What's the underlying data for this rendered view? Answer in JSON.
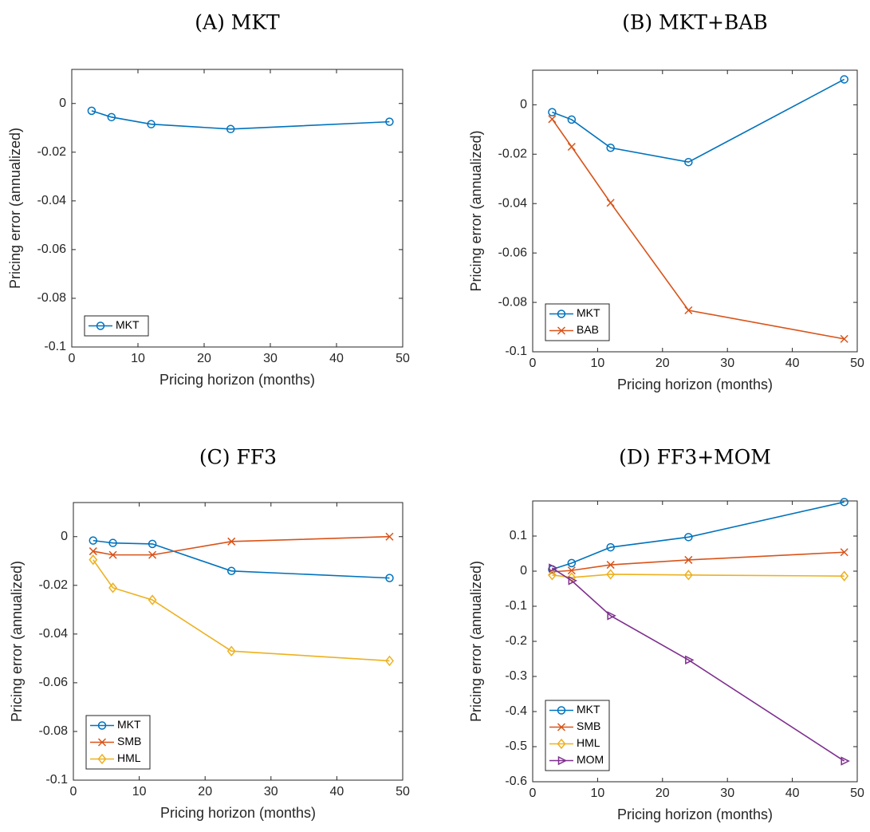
{
  "chart_data": [
    {
      "type": "line",
      "title": "(A) MKT",
      "x_label": "Pricing horizon (months)",
      "y_label": "Pricing error (annualized)",
      "x": [
        3,
        6,
        12,
        24,
        48
      ],
      "xlim": [
        0,
        50
      ],
      "xticks": [
        0,
        10,
        20,
        30,
        40,
        50
      ],
      "ylim": [
        -0.1,
        0.014
      ],
      "yticks": [
        -0.1,
        -0.08,
        -0.06,
        -0.04,
        -0.02,
        0
      ],
      "legend": "lower-left",
      "series": [
        {
          "name": "MKT",
          "color": "#0072bd",
          "marker": "circle",
          "values": [
            -0.003,
            -0.0056,
            -0.0085,
            -0.0105,
            -0.0075
          ]
        }
      ]
    },
    {
      "type": "line",
      "title": "(B) MKT+BAB",
      "x_label": "Pricing horizon (months)",
      "y_label": "Pricing error (annualized)",
      "x": [
        3,
        6,
        12,
        24,
        48
      ],
      "xlim": [
        0,
        50
      ],
      "xticks": [
        0,
        10,
        20,
        30,
        40,
        50
      ],
      "ylim": [
        -0.1,
        0.014
      ],
      "yticks": [
        -0.1,
        -0.08,
        -0.06,
        -0.04,
        -0.02,
        0
      ],
      "legend": "lower-left",
      "series": [
        {
          "name": "MKT",
          "color": "#0072bd",
          "marker": "circle",
          "values": [
            -0.003,
            -0.006,
            -0.0174,
            -0.0232,
            0.0103
          ]
        },
        {
          "name": "BAB",
          "color": "#d95319",
          "marker": "x",
          "values": [
            -0.0058,
            -0.017,
            -0.0397,
            -0.0832,
            -0.0948
          ]
        }
      ]
    },
    {
      "type": "line",
      "title": "(C) FF3",
      "x_label": "Pricing horizon (months)",
      "y_label": "Pricing error (annualized)",
      "x": [
        3,
        6,
        12,
        24,
        48
      ],
      "xlim": [
        0,
        50
      ],
      "xticks": [
        0,
        10,
        20,
        30,
        40,
        50
      ],
      "ylim": [
        -0.1,
        0.014
      ],
      "yticks": [
        -0.1,
        -0.08,
        -0.06,
        -0.04,
        -0.02,
        0
      ],
      "legend": "lower-left",
      "series": [
        {
          "name": "MKT",
          "color": "#0072bd",
          "marker": "circle",
          "values": [
            -0.0016,
            -0.0026,
            -0.003,
            -0.0141,
            -0.017
          ]
        },
        {
          "name": "SMB",
          "color": "#d95319",
          "marker": "x",
          "values": [
            -0.006,
            -0.0075,
            -0.0075,
            -0.002,
            0
          ]
        },
        {
          "name": "HML",
          "color": "#edb120",
          "marker": "diamond",
          "values": [
            -0.0095,
            -0.021,
            -0.026,
            -0.047,
            -0.051
          ]
        }
      ]
    },
    {
      "type": "line",
      "title": "(D) FF3+MOM",
      "x_label": "Pricing horizon (months)",
      "y_label": "Pricing error (annualized)",
      "x": [
        3,
        6,
        12,
        24,
        48
      ],
      "xlim": [
        0,
        50
      ],
      "xticks": [
        0,
        10,
        20,
        30,
        40,
        50
      ],
      "ylim": [
        -0.6,
        0.2
      ],
      "yticks": [
        -0.6,
        -0.5,
        -0.4,
        -0.3,
        -0.2,
        -0.1,
        0,
        0.1
      ],
      "legend": "lower-left",
      "series": [
        {
          "name": "MKT",
          "color": "#0072bd",
          "marker": "circle",
          "values": [
            0.005,
            0.023,
            0.068,
            0.097,
            0.197
          ]
        },
        {
          "name": "SMB",
          "color": "#d95319",
          "marker": "x",
          "values": [
            -0.002,
            0.002,
            0.018,
            0.032,
            0.054
          ]
        },
        {
          "name": "HML",
          "color": "#edb120",
          "marker": "diamond",
          "values": [
            -0.011,
            -0.018,
            -0.009,
            -0.011,
            -0.014
          ]
        },
        {
          "name": "MOM",
          "color": "#7e2f8e",
          "marker": "triangle-right",
          "values": [
            0.009,
            -0.027,
            -0.127,
            -0.253,
            -0.541
          ]
        }
      ]
    }
  ]
}
